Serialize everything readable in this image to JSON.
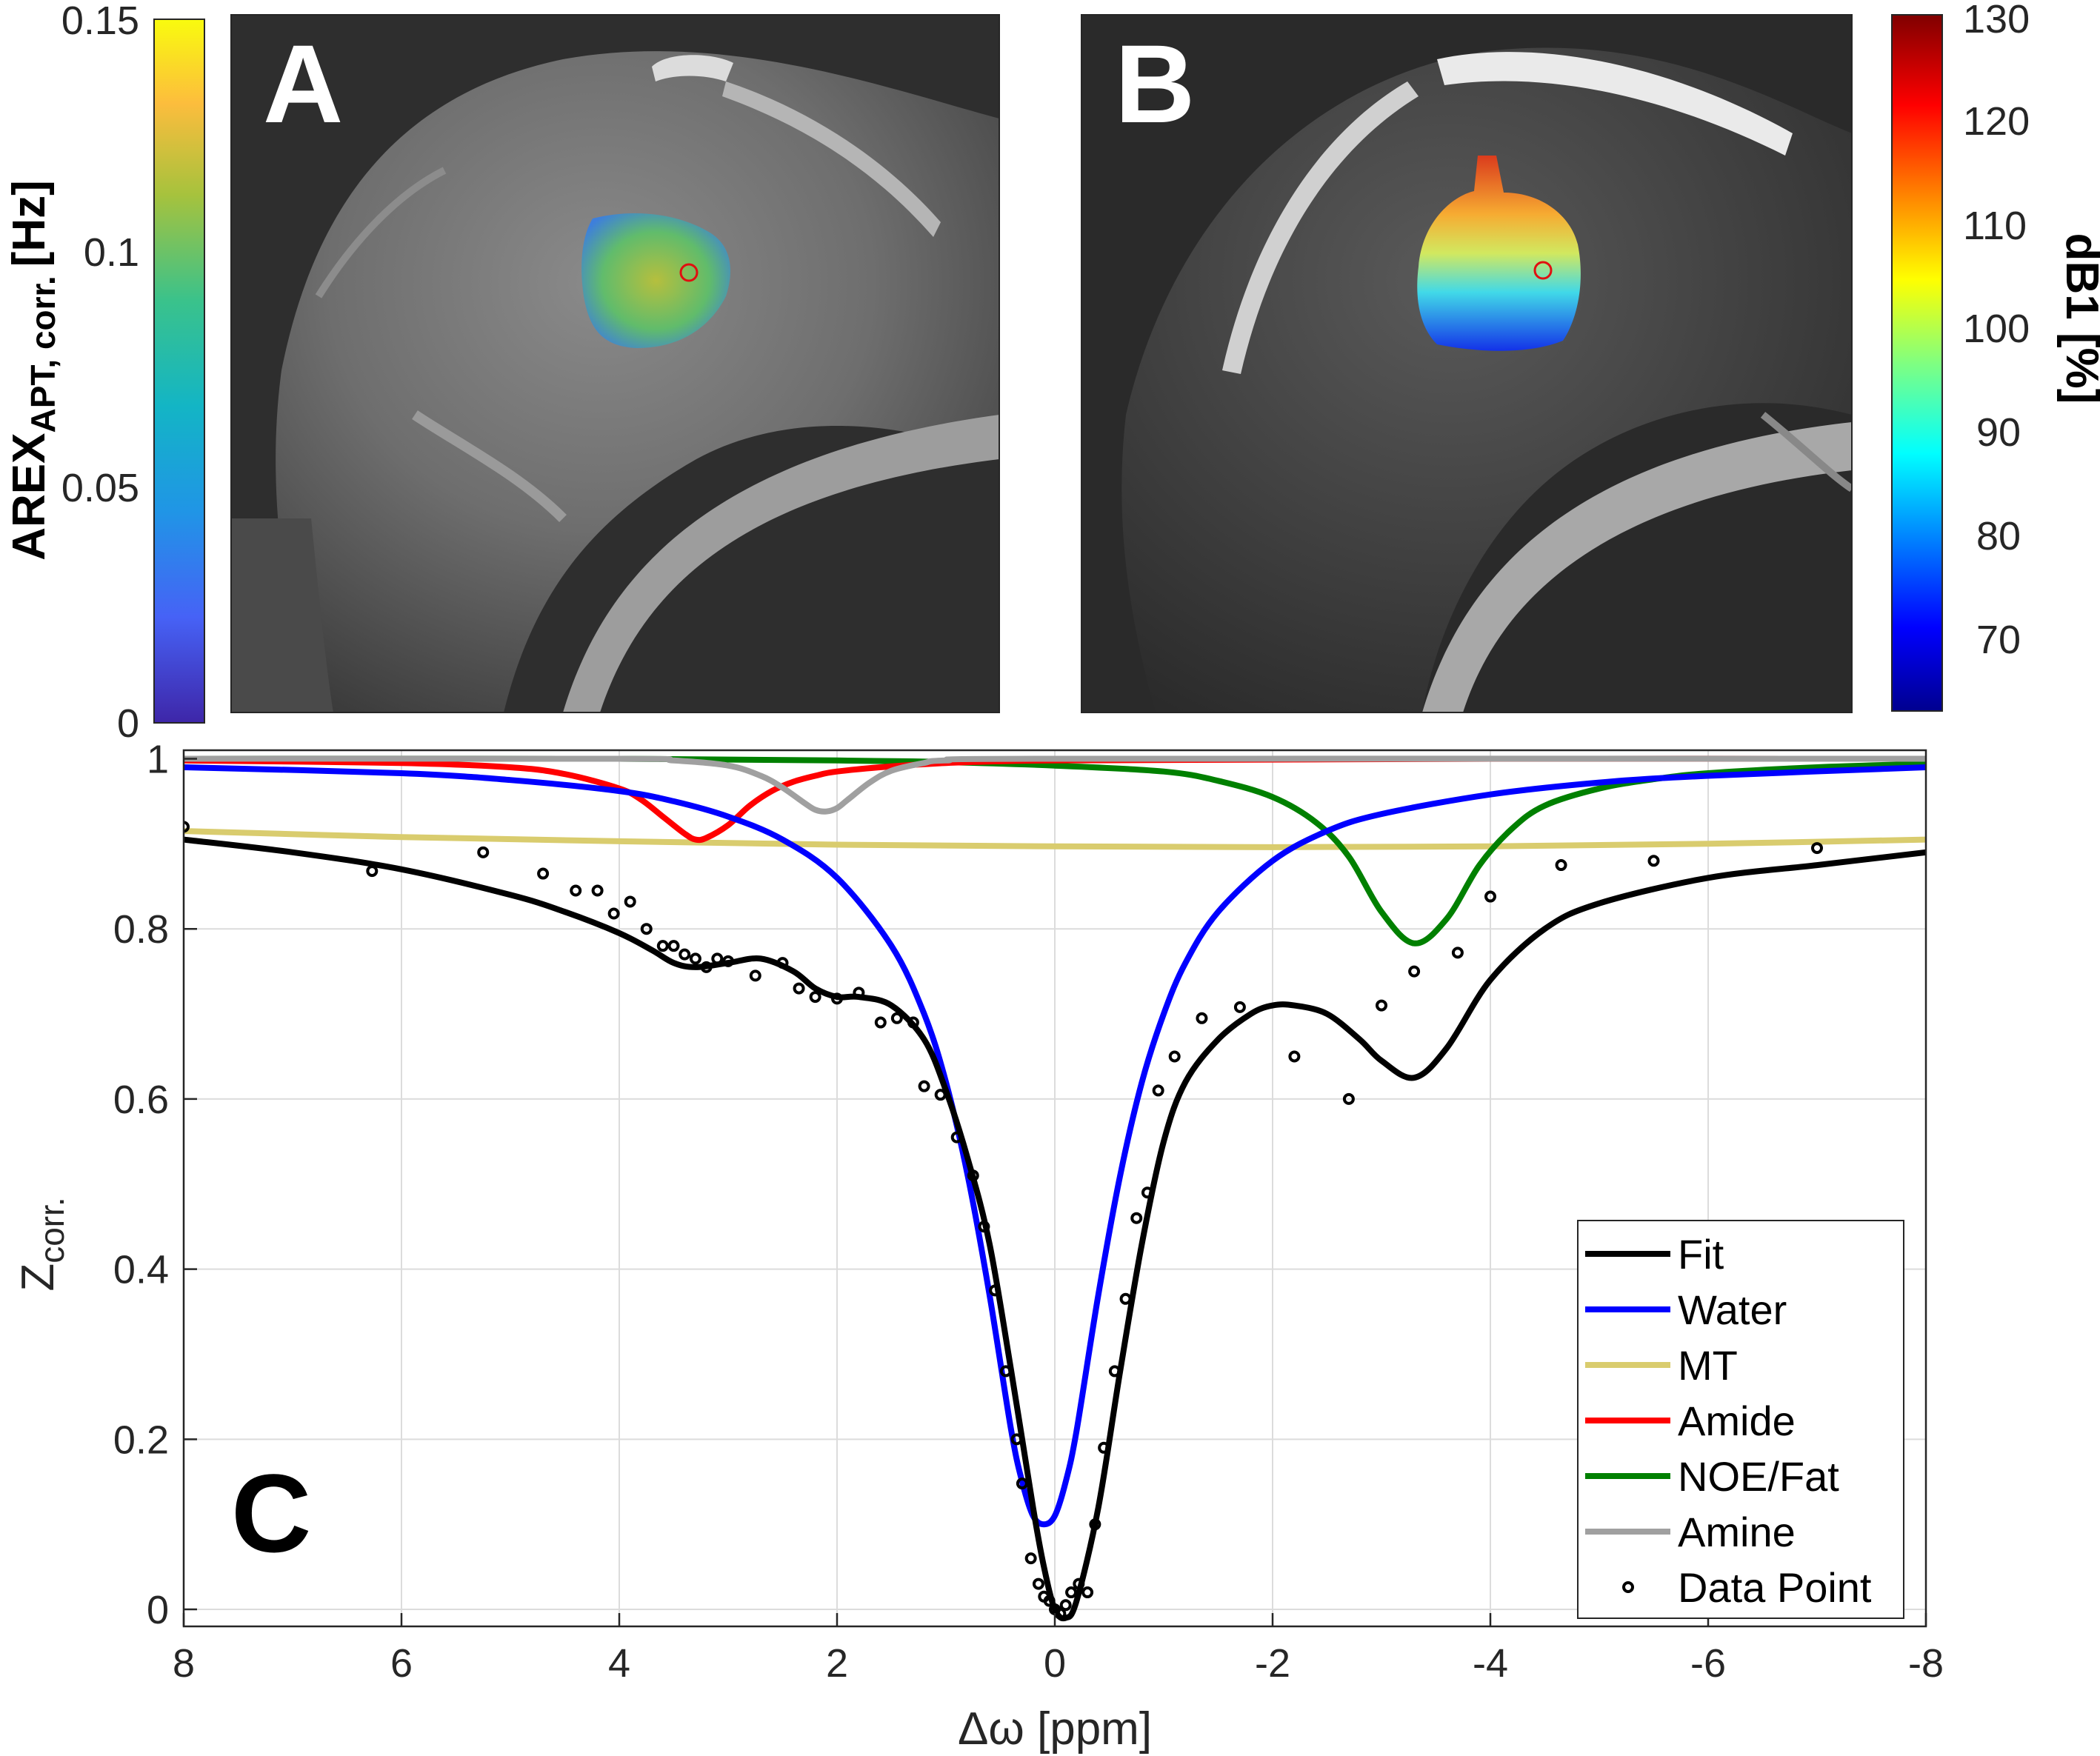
{
  "panel_labels": {
    "a": "A",
    "b": "B",
    "c": "C"
  },
  "colorbar_a": {
    "label_main": "AREX",
    "label_sub": "APT, corr.",
    "label_unit": "[Hz]",
    "ticks": [
      "0.15",
      "0.1",
      "0.05",
      "0"
    ]
  },
  "colorbar_b": {
    "label": "dB1 [%]",
    "ticks": [
      "130",
      "120",
      "110",
      "100",
      "90",
      "80",
      "70"
    ]
  },
  "chart_data": {
    "type": "line",
    "title": "",
    "xlabel": "Δω [ppm]",
    "ylabel_main": "Z",
    "ylabel_sub": "corr.",
    "xlim": [
      8,
      -8
    ],
    "ylim": [
      -0.02,
      1.01
    ],
    "x_reversed": true,
    "grid": true,
    "xticks": [
      8,
      6,
      4,
      2,
      0,
      -2,
      -4,
      -6,
      -8
    ],
    "xtick_labels": [
      "8",
      "6",
      "4",
      "2",
      "0",
      "-2",
      "-4",
      "-6",
      "-8"
    ],
    "yticks": [
      0,
      0.2,
      0.4,
      0.6,
      0.8,
      1
    ],
    "ytick_labels": [
      "0",
      "0.2",
      "0.4",
      "0.6",
      "0.8",
      "1"
    ],
    "legend_position": "bottom-right",
    "series": [
      {
        "name": "Fit",
        "color": "#000000",
        "style": "line",
        "x": [
          8,
          7,
          6,
          5,
          4.5,
          4,
          3.7,
          3.5,
          3.3,
          3.0,
          2.7,
          2.4,
          2.2,
          2.0,
          1.8,
          1.5,
          1.2,
          1.0,
          0.8,
          0.6,
          0.4,
          0.2,
          0.1,
          0.0,
          -0.1,
          -0.2,
          -0.4,
          -0.6,
          -0.8,
          -1.0,
          -1.2,
          -1.5,
          -1.8,
          -2.0,
          -2.2,
          -2.5,
          -2.8,
          -3.0,
          -3.3,
          -3.6,
          -4.0,
          -4.5,
          -5.0,
          -6.0,
          -7.0,
          -8.0
        ],
        "y": [
          0.905,
          0.89,
          0.87,
          0.84,
          0.82,
          0.795,
          0.775,
          0.76,
          0.755,
          0.76,
          0.765,
          0.75,
          0.73,
          0.72,
          0.72,
          0.71,
          0.67,
          0.61,
          0.53,
          0.43,
          0.28,
          0.12,
          0.05,
          0.0,
          -0.01,
          0.01,
          0.12,
          0.28,
          0.43,
          0.55,
          0.62,
          0.67,
          0.7,
          0.71,
          0.71,
          0.7,
          0.67,
          0.645,
          0.625,
          0.66,
          0.74,
          0.8,
          0.83,
          0.86,
          0.875,
          0.89
        ]
      },
      {
        "name": "Water",
        "color": "#0000ff",
        "style": "line",
        "x": [
          8,
          6,
          5,
          4,
          3.5,
          3,
          2.5,
          2,
          1.5,
          1.2,
          1.0,
          0.8,
          0.6,
          0.4,
          0.3,
          0.2,
          0.1,
          0.0,
          -0.1,
          -0.2,
          -0.4,
          -0.6,
          -0.8,
          -1.0,
          -1.2,
          -1.5,
          -2.0,
          -2.5,
          -3,
          -4,
          -5,
          -6,
          -8
        ],
        "y": [
          0.99,
          0.983,
          0.975,
          0.962,
          0.95,
          0.932,
          0.905,
          0.86,
          0.78,
          0.7,
          0.62,
          0.51,
          0.37,
          0.21,
          0.15,
          0.11,
          0.1,
          0.11,
          0.15,
          0.21,
          0.37,
          0.51,
          0.62,
          0.7,
          0.76,
          0.82,
          0.88,
          0.915,
          0.935,
          0.958,
          0.972,
          0.98,
          0.99
        ]
      },
      {
        "name": "MT",
        "color": "#d9cc6e",
        "style": "line",
        "x": [
          8,
          6,
          4,
          2,
          0,
          -2,
          -4,
          -6,
          -8
        ],
        "y": [
          0.915,
          0.908,
          0.903,
          0.899,
          0.897,
          0.896,
          0.897,
          0.9,
          0.905
        ]
      },
      {
        "name": "Amide",
        "color": "#ff0000",
        "style": "line",
        "x": [
          8,
          6,
          5,
          4.5,
          4,
          3.8,
          3.6,
          3.4,
          3.3,
          3.2,
          3.0,
          2.8,
          2.6,
          2.4,
          2.2,
          2.0,
          1.5,
          1.0,
          0.5,
          0,
          -2,
          -4,
          -8
        ],
        "y": [
          0.998,
          0.995,
          0.99,
          0.982,
          0.965,
          0.952,
          0.932,
          0.912,
          0.905,
          0.907,
          0.922,
          0.945,
          0.962,
          0.973,
          0.98,
          0.985,
          0.991,
          0.995,
          0.997,
          0.998,
          0.999,
          1.0,
          1.0
        ]
      },
      {
        "name": "NOE/Fat",
        "color": "#008000",
        "style": "line",
        "x": [
          8,
          4,
          2,
          1,
          0,
          -1,
          -1.5,
          -2,
          -2.4,
          -2.7,
          -3.0,
          -3.3,
          -3.6,
          -3.9,
          -4.2,
          -4.5,
          -5,
          -5.5,
          -6,
          -7,
          -8
        ],
        "y": [
          1.0,
          1.0,
          0.998,
          0.996,
          0.992,
          0.985,
          0.974,
          0.955,
          0.925,
          0.885,
          0.82,
          0.783,
          0.812,
          0.875,
          0.918,
          0.945,
          0.965,
          0.976,
          0.983,
          0.99,
          0.994
        ]
      },
      {
        "name": "Amine",
        "color": "#a0a0a0",
        "style": "line",
        "x": [
          8,
          4,
          3.5,
          3.0,
          2.7,
          2.5,
          2.3,
          2.2,
          2.1,
          2.0,
          1.9,
          1.7,
          1.5,
          1.2,
          1.0,
          0,
          -8
        ],
        "y": [
          1.0,
          1.0,
          0.998,
          0.992,
          0.98,
          0.966,
          0.948,
          0.94,
          0.938,
          0.942,
          0.952,
          0.972,
          0.986,
          0.995,
          0.998,
          1.0,
          1.0
        ]
      },
      {
        "name": "Data Point",
        "color": "#000000",
        "style": "markers",
        "x": [
          8.0,
          6.27,
          5.25,
          4.7,
          4.4,
          4.2,
          4.05,
          3.9,
          3.75,
          3.6,
          3.5,
          3.4,
          3.3,
          3.2,
          3.1,
          3.0,
          2.75,
          2.5,
          2.35,
          2.2,
          2.0,
          1.8,
          1.6,
          1.45,
          1.3,
          1.2,
          1.05,
          0.9,
          0.75,
          0.65,
          0.55,
          0.45,
          0.35,
          0.3,
          0.22,
          0.15,
          0.1,
          0.05,
          0.0,
          -0.05,
          -0.1,
          -0.15,
          -0.22,
          -0.3,
          -0.37,
          -0.45,
          -0.55,
          -0.65,
          -0.75,
          -0.85,
          -0.95,
          -1.1,
          -1.35,
          -1.7,
          -2.2,
          -2.7,
          -3.0,
          -3.3,
          -3.7,
          -4.0,
          -4.65,
          -5.5,
          -7.0
        ],
        "y": [
          0.92,
          0.868,
          0.89,
          0.865,
          0.845,
          0.845,
          0.818,
          0.832,
          0.8,
          0.78,
          0.78,
          0.77,
          0.765,
          0.755,
          0.765,
          0.762,
          0.745,
          0.76,
          0.73,
          0.72,
          0.718,
          0.725,
          0.69,
          0.695,
          0.69,
          0.615,
          0.605,
          0.555,
          0.51,
          0.45,
          0.375,
          0.28,
          0.2,
          0.148,
          0.06,
          0.03,
          0.015,
          0.01,
          0.0,
          -0.005,
          0.005,
          0.02,
          0.03,
          0.02,
          0.1,
          0.19,
          0.28,
          0.365,
          0.46,
          0.49,
          0.61,
          0.65,
          0.695,
          0.708,
          0.65,
          0.6,
          0.71,
          0.75,
          0.772,
          0.838,
          0.875,
          0.88,
          0.895
        ]
      }
    ]
  }
}
